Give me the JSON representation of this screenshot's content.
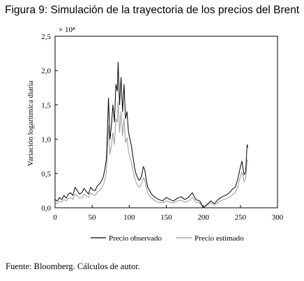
{
  "figure_title": "Figura 9: Simulación de la trayectoria de los precios del Brent",
  "source_note": "Fuente: Bloomberg. Cálculos de autor.",
  "chart_data": {
    "type": "line",
    "title": "Figura 9: Simulación de la trayectoria de los precios del Brent",
    "xlabel": "",
    "ylabel": "Variación logarítmica diaria",
    "y_multiplier": "× 10⁸",
    "xlim": [
      0,
      300
    ],
    "ylim": [
      0,
      2.5
    ],
    "x_ticks": [
      0,
      50,
      100,
      150,
      200,
      250,
      300
    ],
    "x_tick_labels": [
      "0",
      "50",
      "100",
      "150",
      "200",
      "250",
      "300"
    ],
    "y_ticks": [
      0,
      0.5,
      1.0,
      1.5,
      2.0,
      2.5
    ],
    "y_tick_labels": [
      "0,0",
      "0,5",
      "1,0",
      "1,5",
      "2,0",
      "2,5"
    ],
    "grid": false,
    "legend_position": "bottom-center",
    "series": [
      {
        "name": "Precio observado",
        "color": "#000000",
        "x": [
          0,
          3,
          6,
          9,
          12,
          15,
          18,
          21,
          24,
          27,
          30,
          33,
          36,
          39,
          42,
          45,
          48,
          51,
          54,
          57,
          60,
          63,
          65,
          67,
          69,
          70,
          72,
          74,
          76,
          78,
          80,
          82,
          84,
          85,
          87,
          89,
          91,
          93,
          95,
          97,
          99,
          101,
          103,
          105,
          107,
          109,
          111,
          113,
          115,
          117,
          119,
          121,
          123,
          125,
          130,
          135,
          140,
          145,
          150,
          155,
          160,
          165,
          170,
          175,
          180,
          185,
          190,
          195,
          200,
          205,
          210,
          215,
          220,
          225,
          230,
          235,
          240,
          243,
          246,
          249,
          252,
          255,
          257,
          259,
          260
        ],
        "y": [
          0.12,
          0.1,
          0.15,
          0.12,
          0.18,
          0.14,
          0.2,
          0.22,
          0.18,
          0.3,
          0.25,
          0.2,
          0.22,
          0.28,
          0.24,
          0.2,
          0.3,
          0.26,
          0.25,
          0.32,
          0.35,
          0.4,
          0.45,
          0.55,
          0.7,
          0.9,
          1.6,
          1.0,
          1.2,
          1.5,
          1.25,
          1.8,
          1.7,
          2.12,
          1.5,
          1.9,
          1.4,
          1.8,
          1.3,
          1.4,
          1.1,
          1.0,
          0.9,
          0.75,
          0.6,
          0.5,
          0.45,
          0.4,
          0.42,
          0.48,
          0.6,
          0.55,
          0.4,
          0.3,
          0.2,
          0.15,
          0.12,
          0.1,
          0.15,
          0.12,
          0.1,
          0.14,
          0.16,
          0.12,
          0.15,
          0.22,
          0.12,
          0.1,
          0.0,
          0.05,
          0.1,
          0.06,
          0.12,
          0.16,
          0.18,
          0.22,
          0.28,
          0.3,
          0.4,
          0.55,
          0.68,
          0.48,
          0.52,
          0.92,
          0.88
        ]
      },
      {
        "name": "Precio estimado",
        "color": "#999999",
        "x": [
          0,
          3,
          6,
          9,
          12,
          15,
          18,
          21,
          24,
          27,
          30,
          33,
          36,
          39,
          42,
          45,
          48,
          51,
          54,
          57,
          60,
          63,
          65,
          67,
          69,
          70,
          72,
          74,
          76,
          78,
          80,
          82,
          84,
          85,
          87,
          89,
          91,
          93,
          95,
          97,
          99,
          101,
          103,
          105,
          107,
          109,
          111,
          113,
          115,
          117,
          119,
          121,
          123,
          125,
          130,
          135,
          140,
          145,
          150,
          155,
          160,
          165,
          170,
          175,
          180,
          185,
          190,
          195,
          200,
          205,
          210,
          215,
          220,
          225,
          230,
          235,
          240,
          243,
          246,
          249,
          252,
          255,
          257,
          259,
          260
        ],
        "y": [
          0.08,
          0.06,
          0.1,
          0.08,
          0.12,
          0.1,
          0.14,
          0.15,
          0.12,
          0.2,
          0.18,
          0.14,
          0.15,
          0.2,
          0.17,
          0.15,
          0.22,
          0.19,
          0.18,
          0.23,
          0.25,
          0.3,
          0.33,
          0.4,
          0.52,
          0.65,
          1.2,
          0.78,
          0.9,
          1.1,
          0.92,
          1.3,
          1.25,
          1.55,
          1.1,
          1.4,
          1.05,
          1.3,
          0.95,
          1.02,
          0.82,
          0.74,
          0.66,
          0.55,
          0.45,
          0.38,
          0.33,
          0.3,
          0.32,
          0.36,
          0.44,
          0.4,
          0.3,
          0.22,
          0.14,
          0.1,
          0.08,
          0.07,
          0.1,
          0.08,
          0.07,
          0.1,
          0.11,
          0.08,
          0.1,
          0.15,
          0.08,
          0.07,
          0.0,
          0.04,
          0.07,
          0.04,
          0.08,
          0.11,
          0.13,
          0.15,
          0.2,
          0.22,
          0.3,
          0.42,
          0.52,
          0.38,
          0.42,
          0.7,
          0.68
        ]
      }
    ]
  }
}
